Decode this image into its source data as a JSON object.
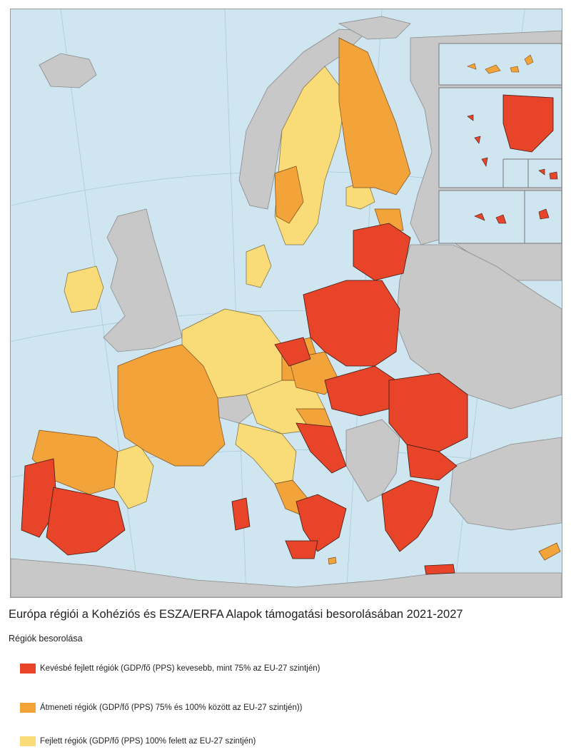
{
  "title": "Európa régiói a Kohéziós és ESZA/ERFA Alapok támogatási besorolásában 2021-2027",
  "legend_title": "Régiók besorolása",
  "legend": [
    {
      "label": "Kevésbé fejlett régiók (GDP/fő (PPS) kevesebb, mint 75% az  EU-27 szintjén)",
      "color": "#e8442a"
    },
    {
      "label": "Átmeneti régiók (GDP/fő (PPS) 75% és 100% között az  EU-27 szintjén))",
      "color": "#f2a33a"
    },
    {
      "label": "Fejlett régiók (GDP/fő (PPS) 100% felett az EU-27 szintjén)",
      "color": "#f9dc78"
    }
  ],
  "colors": {
    "sea": "#cfe6f1",
    "non_eu": "#c8c8c8",
    "less_developed": "#e8442a",
    "transition": "#f2a33a",
    "more_developed": "#f9dc78",
    "border": "#333333"
  }
}
